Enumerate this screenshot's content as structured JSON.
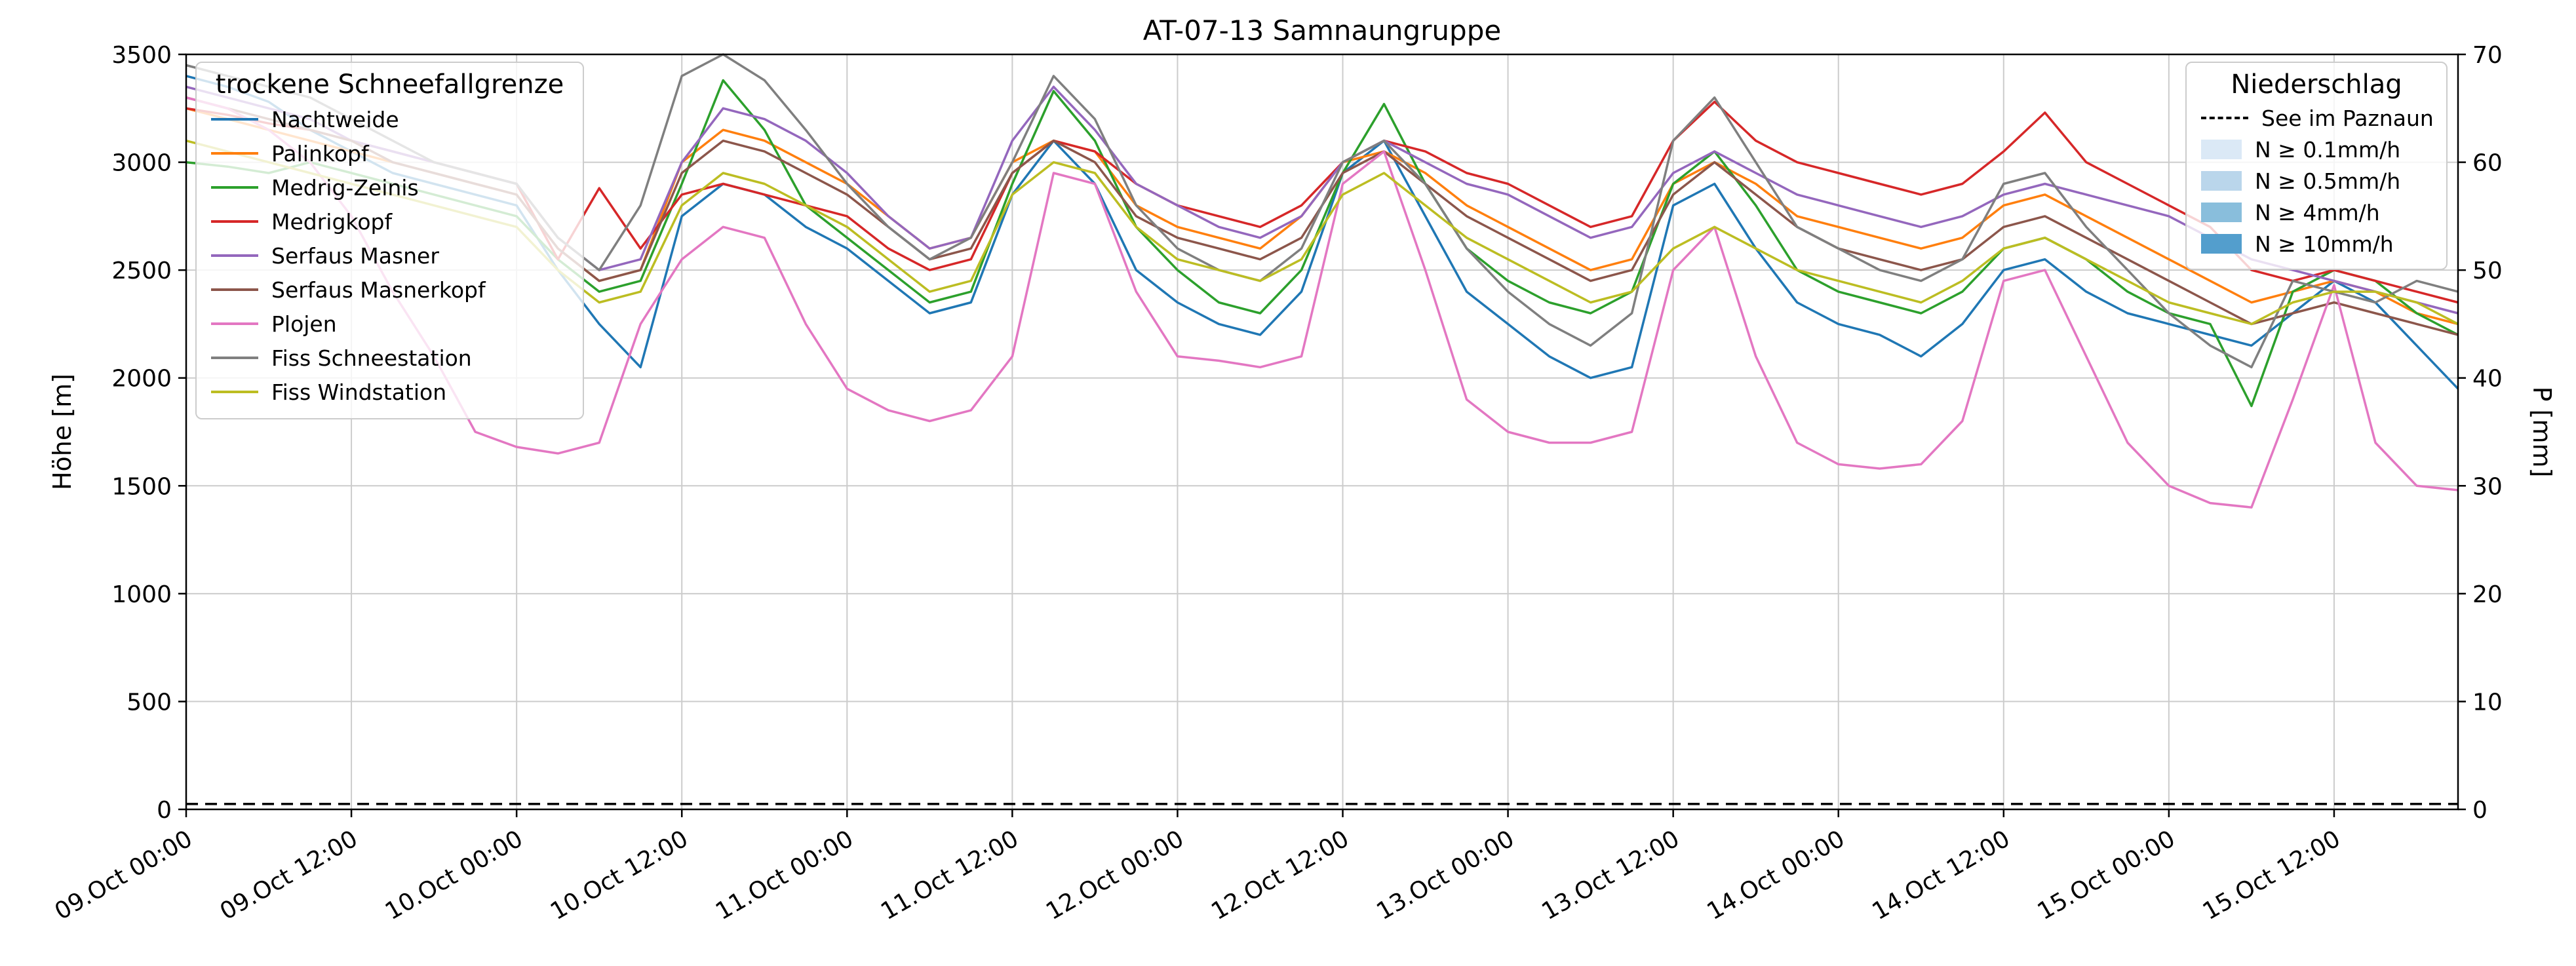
{
  "figure": {
    "title": "AT-07-13 Samnaungruppe",
    "ylabel_left": "Höhe [m]",
    "ylabel_right": "P [mm]",
    "background": "#ffffff"
  },
  "legend_snowline": {
    "title": "trockene Schneefallgrenze",
    "items": [
      {
        "label": "Nachtweide",
        "color": "#1f77b4"
      },
      {
        "label": "Palinkopf",
        "color": "#ff7f0e"
      },
      {
        "label": "Medrig-Zeinis",
        "color": "#2ca02c"
      },
      {
        "label": "Medrigkopf",
        "color": "#d62728"
      },
      {
        "label": "Serfaus Masner",
        "color": "#9467bd"
      },
      {
        "label": "Serfaus Masnerkopf",
        "color": "#8c564b"
      },
      {
        "label": "Plojen",
        "color": "#e377c2"
      },
      {
        "label": "Fiss Schneestation",
        "color": "#7f7f7f"
      },
      {
        "label": "Fiss Windstation",
        "color": "#bcbd22"
      }
    ]
  },
  "legend_precip": {
    "title": "Niederschlag",
    "line_item": {
      "label": "See im Paznaun",
      "color": "#000000",
      "style": "dashed"
    },
    "patch_items": [
      {
        "label": "N ≥ 0.1mm/h",
        "color": "#dbe9f6"
      },
      {
        "label": "N ≥ 0.5mm/h",
        "color": "#bad6eb"
      },
      {
        "label": "N ≥ 4mm/h",
        "color": "#89bedc"
      },
      {
        "label": "N ≥ 10mm/h",
        "color": "#539ecd"
      }
    ]
  },
  "chart_data": {
    "type": "line",
    "title": "AT-07-13 Samnaungruppe",
    "xlabel": "",
    "ylabel_left": "Höhe [m]",
    "ylabel_right": "P [mm]",
    "x_unit": "hours since 09.Oct 00:00",
    "xlim": [
      0,
      165
    ],
    "ylim_left": [
      0,
      3500
    ],
    "yticks_left": [
      0,
      500,
      1000,
      1500,
      2000,
      2500,
      3000,
      3500
    ],
    "ylim_right": [
      0,
      70
    ],
    "yticks_right": [
      0,
      10,
      20,
      30,
      40,
      50,
      60,
      70
    ],
    "grid": true,
    "legend_position": "upper left / upper right",
    "xticks": [
      {
        "t": 0,
        "label": "09.Oct 00:00"
      },
      {
        "t": 12,
        "label": "09.Oct 12:00"
      },
      {
        "t": 24,
        "label": "10.Oct 00:00"
      },
      {
        "t": 36,
        "label": "10.Oct 12:00"
      },
      {
        "t": 48,
        "label": "11.Oct 00:00"
      },
      {
        "t": 60,
        "label": "11.Oct 12:00"
      },
      {
        "t": 72,
        "label": "12.Oct 00:00"
      },
      {
        "t": 84,
        "label": "12.Oct 12:00"
      },
      {
        "t": 96,
        "label": "13.Oct 00:00"
      },
      {
        "t": 108,
        "label": "13.Oct 12:00"
      },
      {
        "t": 120,
        "label": "14.Oct 00:00"
      },
      {
        "t": 132,
        "label": "14.Oct 12:00"
      },
      {
        "t": 144,
        "label": "15.Oct 00:00"
      },
      {
        "t": 156,
        "label": "15.Oct 12:00"
      }
    ],
    "x": [
      0,
      3,
      6,
      9,
      12,
      15,
      18,
      21,
      24,
      27,
      30,
      33,
      36,
      39,
      42,
      45,
      48,
      51,
      54,
      57,
      60,
      63,
      66,
      69,
      72,
      75,
      78,
      81,
      84,
      87,
      90,
      93,
      96,
      99,
      102,
      105,
      108,
      111,
      114,
      117,
      120,
      123,
      126,
      129,
      132,
      135,
      138,
      141,
      144,
      147,
      150,
      153,
      156,
      159,
      162,
      165
    ],
    "series": [
      {
        "name": "Nachtweide",
        "color": "#1f77b4",
        "axis": "left",
        "values": [
          3400,
          3350,
          3280,
          3150,
          3050,
          2950,
          2900,
          2850,
          2800,
          2500,
          2250,
          2050,
          2750,
          2900,
          2850,
          2700,
          2600,
          2450,
          2300,
          2350,
          2850,
          3100,
          2900,
          2500,
          2350,
          2250,
          2200,
          2400,
          2950,
          3100,
          2750,
          2400,
          2250,
          2100,
          2000,
          2050,
          2800,
          2900,
          2600,
          2350,
          2250,
          2200,
          2100,
          2250,
          2500,
          2550,
          2400,
          2300,
          2250,
          2200,
          2150,
          2300,
          2450,
          2350,
          2150,
          1950
        ]
      },
      {
        "name": "Palinkopf",
        "color": "#ff7f0e",
        "axis": "left",
        "values": [
          3250,
          3200,
          3150,
          3100,
          3050,
          3000,
          2950,
          2900,
          2850,
          2600,
          2450,
          2500,
          3000,
          3150,
          3100,
          3000,
          2900,
          2750,
          2600,
          2650,
          3000,
          3100,
          3050,
          2800,
          2700,
          2650,
          2600,
          2750,
          3000,
          3050,
          2950,
          2800,
          2700,
          2600,
          2500,
          2550,
          2900,
          3000,
          2900,
          2750,
          2700,
          2650,
          2600,
          2650,
          2800,
          2850,
          2750,
          2650,
          2550,
          2450,
          2350,
          2400,
          2450,
          2400,
          2300,
          2250
        ]
      },
      {
        "name": "Medrig-Zeinis",
        "color": "#2ca02c",
        "axis": "left",
        "values": [
          3000,
          2980,
          2950,
          3000,
          2950,
          2900,
          2850,
          2800,
          2750,
          2550,
          2400,
          2450,
          2900,
          3380,
          3150,
          2800,
          2650,
          2500,
          2350,
          2400,
          2900,
          3330,
          3100,
          2700,
          2500,
          2350,
          2300,
          2500,
          2950,
          3270,
          2900,
          2600,
          2450,
          2350,
          2300,
          2400,
          2900,
          3050,
          2800,
          2500,
          2400,
          2350,
          2300,
          2400,
          2600,
          2650,
          2550,
          2400,
          2300,
          2250,
          1870,
          2400,
          2500,
          2450,
          2300,
          2200
        ]
      },
      {
        "name": "Medrigkopf",
        "color": "#d62728",
        "axis": "left",
        "values": [
          3250,
          3220,
          3180,
          3150,
          3100,
          3050,
          3000,
          2950,
          2900,
          2550,
          2880,
          2600,
          2850,
          2900,
          2850,
          2800,
          2750,
          2600,
          2500,
          2550,
          2950,
          3100,
          3050,
          2900,
          2800,
          2750,
          2700,
          2800,
          3000,
          3100,
          3050,
          2950,
          2900,
          2800,
          2700,
          2750,
          3100,
          3280,
          3100,
          3000,
          2950,
          2900,
          2850,
          2900,
          3050,
          3230,
          3000,
          2900,
          2800,
          2700,
          2500,
          2450,
          2500,
          2450,
          2400,
          2350
        ]
      },
      {
        "name": "Serfaus Masner",
        "color": "#9467bd",
        "axis": "left",
        "values": [
          3350,
          3300,
          3250,
          3200,
          3100,
          3050,
          3000,
          2950,
          2900,
          2650,
          2500,
          2550,
          3000,
          3250,
          3200,
          3100,
          2950,
          2750,
          2600,
          2650,
          3100,
          3350,
          3150,
          2900,
          2800,
          2700,
          2650,
          2750,
          3000,
          3100,
          3000,
          2900,
          2850,
          2750,
          2650,
          2700,
          2950,
          3050,
          2950,
          2850,
          2800,
          2750,
          2700,
          2750,
          2850,
          2900,
          2850,
          2800,
          2750,
          2650,
          2550,
          2500,
          2450,
          2400,
          2350,
          2300
        ]
      },
      {
        "name": "Serfaus Masnerkopf",
        "color": "#8c564b",
        "axis": "left",
        "values": [
          3300,
          3250,
          3200,
          3150,
          3100,
          3000,
          2950,
          2900,
          2850,
          2600,
          2450,
          2500,
          2950,
          3100,
          3050,
          2950,
          2850,
          2700,
          2550,
          2600,
          2950,
          3100,
          3000,
          2750,
          2650,
          2600,
          2550,
          2650,
          2950,
          3050,
          2900,
          2750,
          2650,
          2550,
          2450,
          2500,
          2850,
          3000,
          2850,
          2700,
          2600,
          2550,
          2500,
          2550,
          2700,
          2750,
          2650,
          2550,
          2450,
          2350,
          2250,
          2300,
          2350,
          2300,
          2250,
          2200
        ]
      },
      {
        "name": "Plojen",
        "color": "#e377c2",
        "axis": "left",
        "values": [
          3300,
          3250,
          3150,
          3000,
          2750,
          2400,
          2100,
          1750,
          1680,
          1650,
          1700,
          2250,
          2550,
          2700,
          2650,
          2250,
          1950,
          1850,
          1800,
          1850,
          2100,
          2950,
          2900,
          2400,
          2100,
          2080,
          2050,
          2100,
          2900,
          3050,
          2500,
          1900,
          1750,
          1700,
          1700,
          1750,
          2500,
          2700,
          2100,
          1700,
          1600,
          1580,
          1600,
          1800,
          2450,
          2500,
          2100,
          1700,
          1500,
          1420,
          1400,
          1900,
          2430,
          1700,
          1500,
          1480
        ]
      },
      {
        "name": "Fiss Schneestation",
        "color": "#7f7f7f",
        "axis": "left",
        "values": [
          3450,
          3400,
          3350,
          3300,
          3200,
          3100,
          3000,
          2950,
          2900,
          2650,
          2500,
          2800,
          3400,
          3500,
          3380,
          3150,
          2900,
          2700,
          2550,
          2650,
          3000,
          3400,
          3200,
          2800,
          2600,
          2500,
          2450,
          2600,
          3000,
          3100,
          2900,
          2600,
          2400,
          2250,
          2150,
          2300,
          3100,
          3300,
          3000,
          2700,
          2600,
          2500,
          2450,
          2550,
          2900,
          2950,
          2700,
          2500,
          2300,
          2150,
          2050,
          2450,
          2400,
          2350,
          2450,
          2400
        ]
      },
      {
        "name": "Fiss Windstation",
        "color": "#bcbd22",
        "axis": "left",
        "values": [
          3100,
          3050,
          3000,
          2950,
          2900,
          2850,
          2800,
          2750,
          2700,
          2500,
          2350,
          2400,
          2800,
          2950,
          2900,
          2800,
          2700,
          2550,
          2400,
          2450,
          2850,
          3000,
          2950,
          2700,
          2550,
          2500,
          2450,
          2550,
          2850,
          2950,
          2800,
          2650,
          2550,
          2450,
          2350,
          2400,
          2600,
          2700,
          2600,
          2500,
          2450,
          2400,
          2350,
          2450,
          2600,
          2650,
          2550,
          2450,
          2350,
          2300,
          2250,
          2350,
          2400,
          2400,
          2350,
          2250
        ]
      },
      {
        "name": "See im Paznaun",
        "color": "#000000",
        "axis": "right",
        "dash": true,
        "values": [
          0.5,
          0.5,
          0.5,
          0.5,
          0.5,
          0.5,
          0.5,
          0.5,
          0.5,
          0.5,
          0.5,
          0.5,
          0.5,
          0.5,
          0.5,
          0.5,
          0.5,
          0.5,
          0.5,
          0.5,
          0.5,
          0.5,
          0.5,
          0.5,
          0.5,
          0.5,
          0.5,
          0.5,
          0.5,
          0.5,
          0.5,
          0.5,
          0.5,
          0.5,
          0.5,
          0.5,
          0.5,
          0.5,
          0.5,
          0.5,
          0.5,
          0.5,
          0.5,
          0.5,
          0.5,
          0.5,
          0.5,
          0.5,
          0.5,
          0.5,
          0.5,
          0.5,
          0.5,
          0.5,
          0.5,
          0.5
        ]
      }
    ]
  }
}
